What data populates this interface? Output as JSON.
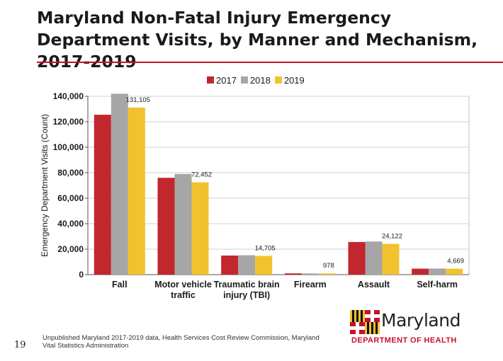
{
  "page": {
    "title": "Maryland Non-Fatal Injury Emergency Department Visits, by Manner and Mechanism, 2017-2019",
    "footnote_line1": "Unpublished Maryland 2017-2019 data, Health Services Cost Review Commission, Maryland",
    "footnote_line2": "Vital Statistics Administration",
    "page_number": "19",
    "logo_name": "Maryland",
    "logo_dept": "DEPARTMENT OF HEALTH"
  },
  "colors": {
    "accent": "#c8102e",
    "series_2017": "#c1272d",
    "series_2018": "#a6a6a6",
    "series_2019": "#f2c12e"
  },
  "chart_data": {
    "type": "bar",
    "title": "",
    "xlabel": "",
    "ylabel": "Emergency Department Visits (Count)",
    "ylim": [
      0,
      140000
    ],
    "yticks": [
      0,
      20000,
      40000,
      60000,
      80000,
      100000,
      120000,
      140000
    ],
    "ytick_labels": [
      "0",
      "20,000",
      "40,000",
      "60,000",
      "80,000",
      "100,000",
      "120,000",
      "140,000"
    ],
    "grid": true,
    "legend_position": "top-center",
    "categories": [
      [
        "Fall"
      ],
      [
        "Motor vehicle",
        "traffic"
      ],
      [
        "Traumatic brain",
        "injury (TBI)"
      ],
      [
        "Firearm"
      ],
      [
        "Assault"
      ],
      [
        "Self-harm"
      ]
    ],
    "series": [
      {
        "name": "2017",
        "color": "#c1272d",
        "values": [
          125500,
          76000,
          15000,
          1000,
          25600,
          4700
        ]
      },
      {
        "name": "2018",
        "color": "#a6a6a6",
        "values": [
          142000,
          79000,
          15200,
          950,
          26000,
          4800
        ]
      },
      {
        "name": "2019",
        "color": "#f2c12e",
        "values": [
          131105,
          72452,
          14705,
          978,
          24122,
          4669
        ]
      }
    ],
    "data_labels": [
      "131,105",
      "72,452",
      "14,705",
      "978",
      "24,122",
      "4,669"
    ]
  }
}
